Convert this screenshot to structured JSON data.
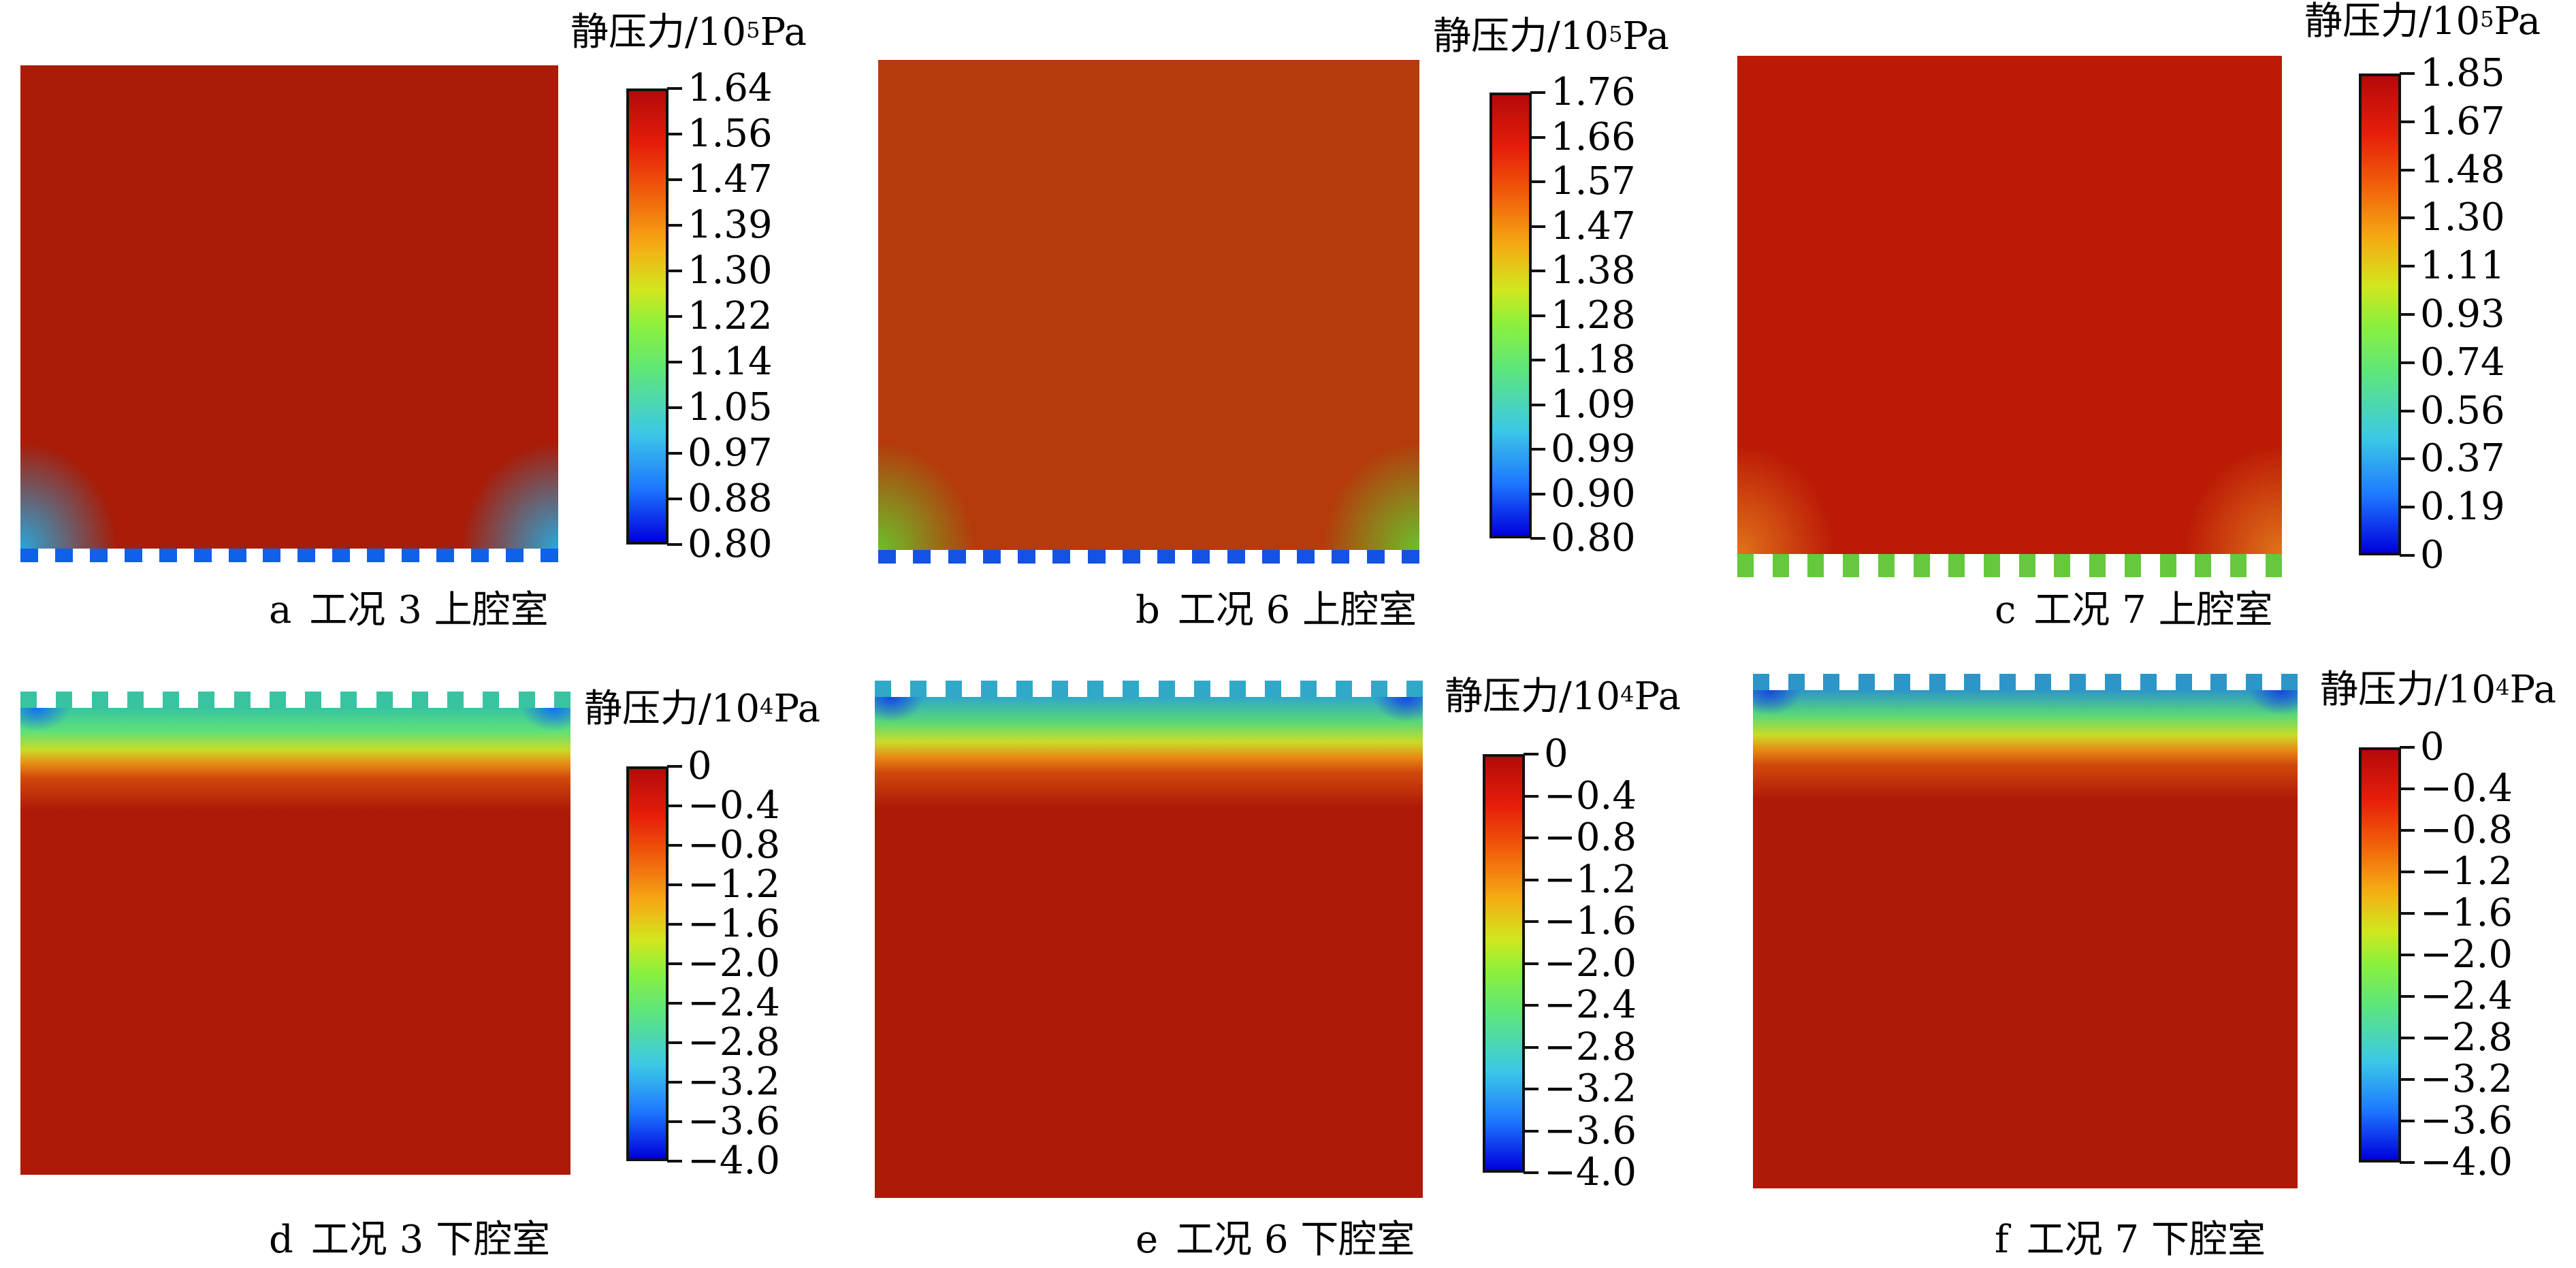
{
  "panels": [
    {
      "letter": "a",
      "caption": "工况 3 上腔室",
      "chamber": "upper",
      "scale": {
        "title_prefix": "静压力/10",
        "exponent": "5",
        "unit": "Pa",
        "ticks": [
          "1.64",
          "1.56",
          "1.47",
          "1.39",
          "1.30",
          "1.22",
          "1.14",
          "1.05",
          "0.97",
          "0.88",
          "0.80"
        ]
      },
      "colors": {
        "main": "#a81c08",
        "corner": "#2aa6d8",
        "gap": "#1060e8"
      }
    },
    {
      "letter": "b",
      "caption": "工况 6 上腔室",
      "chamber": "upper",
      "scale": {
        "title_prefix": "静压力/10",
        "exponent": "5",
        "unit": "Pa",
        "ticks": [
          "1.76",
          "1.66",
          "1.57",
          "1.47",
          "1.38",
          "1.28",
          "1.18",
          "1.09",
          "0.99",
          "0.90",
          "0.80"
        ]
      },
      "colors": {
        "main": "#b53a0c",
        "corner": "#6cc02a",
        "gap": "#1452e6"
      }
    },
    {
      "letter": "c",
      "caption": "工况 7 上腔室",
      "chamber": "upper",
      "scale": {
        "title_prefix": "静压力/10",
        "exponent": "5",
        "unit": "Pa",
        "ticks": [
          "1.85",
          "1.67",
          "1.48",
          "1.30",
          "1.11",
          "0.93",
          "0.74",
          "0.56",
          "0.37",
          "0.19",
          "0"
        ]
      },
      "colors": {
        "main": "#bb1a06",
        "corner": "#e0741a",
        "gap": "#66c83c"
      }
    },
    {
      "letter": "d",
      "caption": "工况 3 下腔室",
      "chamber": "lower",
      "scale": {
        "title_prefix": "静压力/10",
        "exponent": "4",
        "unit": "Pa",
        "ticks": [
          "0",
          "−0.4",
          "−0.8",
          "−1.2",
          "−1.6",
          "−2.0",
          "−2.4",
          "−2.8",
          "−3.2",
          "−3.6",
          "−4.0"
        ]
      },
      "colors": {
        "main": "#ad1a08",
        "band": "#5ee07a",
        "teeth": "#38c4a0",
        "edge": "#1470f0"
      }
    },
    {
      "letter": "e",
      "caption": "工况 6 下腔室",
      "chamber": "lower",
      "scale": {
        "title_prefix": "静压力/10",
        "exponent": "4",
        "unit": "Pa",
        "ticks": [
          "0",
          "−0.4",
          "−0.8",
          "−1.2",
          "−1.6",
          "−2.0",
          "−2.4",
          "−2.8",
          "−3.2",
          "−3.6",
          "−4.0"
        ]
      },
      "colors": {
        "main": "#ad1a08",
        "band": "#58d878",
        "teeth": "#30a8c8",
        "edge": "#1648e0"
      }
    },
    {
      "letter": "f",
      "caption": "工况 7 下腔室",
      "chamber": "lower",
      "scale": {
        "title_prefix": "静压力/10",
        "exponent": "4",
        "unit": "Pa",
        "ticks": [
          "0",
          "−0.4",
          "−0.8",
          "−1.2",
          "−1.6",
          "−2.0",
          "−2.4",
          "−2.8",
          "−3.2",
          "−3.6",
          "−4.0"
        ]
      },
      "colors": {
        "main": "#ad1a08",
        "band": "#58d878",
        "teeth": "#2c96c8",
        "edge": "#1648e0"
      }
    }
  ]
}
